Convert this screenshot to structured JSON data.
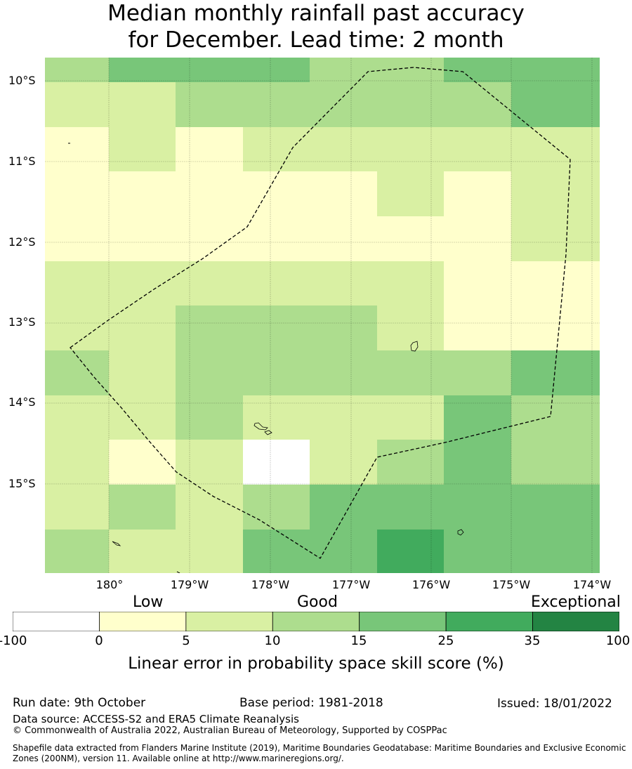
{
  "title_line1": "Median monthly rainfall past accuracy",
  "title_line2": "for December. Lead time: 2 month",
  "lat_labels": [
    "10°S",
    "11°S",
    "12°S",
    "13°S",
    "14°S",
    "15°S"
  ],
  "lon_labels": [
    "180°",
    "179°W",
    "178°W",
    "177°W",
    "176°W",
    "175°W",
    "174°W"
  ],
  "category_labels": {
    "low": "Low",
    "good": "Good",
    "exceptional": "Exceptional"
  },
  "colorbar": {
    "title": "Linear error in probability space skill score (%)",
    "ticks": [
      "-100",
      "0",
      "5",
      "10",
      "15",
      "25",
      "35",
      "100"
    ],
    "colors": [
      "#ffffff",
      "#ffffcc",
      "#d9f0a3",
      "#addd8e",
      "#78c679",
      "#41ab5d",
      "#238443"
    ]
  },
  "grid_values": [
    [
      3,
      4,
      4,
      4,
      3,
      3,
      4,
      4
    ],
    [
      2,
      2,
      3,
      3,
      3,
      3,
      3,
      4
    ],
    [
      1,
      2,
      1,
      2,
      2,
      2,
      2,
      2
    ],
    [
      1,
      1,
      1,
      1,
      1,
      2,
      1,
      2
    ],
    [
      1,
      1,
      1,
      1,
      1,
      1,
      1,
      2
    ],
    [
      2,
      2,
      2,
      2,
      2,
      2,
      1,
      1
    ],
    [
      2,
      2,
      3,
      3,
      3,
      2,
      1,
      1
    ],
    [
      3,
      2,
      3,
      3,
      3,
      3,
      3,
      4
    ],
    [
      2,
      2,
      3,
      2,
      2,
      2,
      4,
      3
    ],
    [
      2,
      1,
      2,
      0,
      2,
      3,
      4,
      3
    ],
    [
      2,
      3,
      2,
      3,
      4,
      4,
      4,
      4
    ],
    [
      3,
      2,
      2,
      4,
      4,
      5,
      4,
      4
    ]
  ],
  "footer": {
    "run_date": "Run date: 9th October",
    "base_period": "Base period: 1981-2018",
    "issued": "Issued: 18/01/2022",
    "data_source": "Data source: ACCESS-S2 and ERA5 Climate Reanalysis",
    "copyright": "© Commonwealth of Australia 2022, Australian Bureau of Meteorology, Supported by COSPPac",
    "shapefile_line1": "Shapefile data extracted from Flanders Marine Institute (2019), Maritime Boundaries Geodatabase: Maritime Boundaries and Exclusive Economic",
    "shapefile_line2": "Zones (200NM), version 11. Available online at http://www.marineregions.org/."
  }
}
